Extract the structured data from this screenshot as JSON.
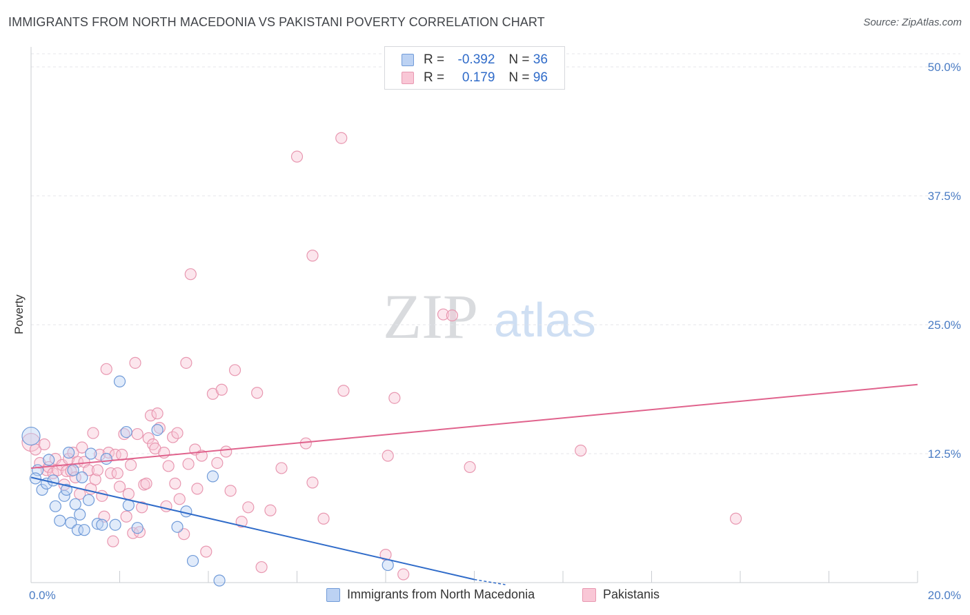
{
  "title": "IMMIGRANTS FROM NORTH MACEDONIA VS PAKISTANI POVERTY CORRELATION CHART",
  "source": "Source: ZipAtlas.com",
  "watermark": {
    "zip": "ZIP",
    "atlas": "atlas"
  },
  "legend": {
    "rows": [
      {
        "r_label": "R =",
        "r_value": "-0.392",
        "n_label": "N =",
        "n_value": "36"
      },
      {
        "r_label": "R =",
        "r_value": "0.179",
        "n_label": "N =",
        "n_value": "96"
      }
    ]
  },
  "colors": {
    "blue": "#6f9ad8",
    "blue_fill": "#bcd2f3",
    "blue_line": "#2f6bc9",
    "pink": "#e897b0",
    "pink_fill": "#f9c7d6",
    "pink_line": "#e0628c",
    "grid": "#e4e6ea"
  },
  "chart_data": {
    "type": "scatter",
    "title": "IMMIGRANTS FROM NORTH MACEDONIA VS PAKISTANI POVERTY CORRELATION CHART",
    "xlabel": "",
    "ylabel": "Poverty",
    "xlim": [
      0,
      20
    ],
    "ylim": [
      0,
      50
    ],
    "x_tick_labels": [
      "0.0%",
      "20.0%"
    ],
    "y_ticks": [
      12.5,
      25,
      37.5,
      50
    ],
    "y_tick_labels": [
      "12.5%",
      "25.0%",
      "37.5%",
      "50.0%"
    ],
    "grid": true,
    "legend_position": "bottom",
    "series": [
      {
        "name": "Immigrants from North Macedonia",
        "r": -0.392,
        "n": 36,
        "trend": {
          "x": [
            0,
            10.0
          ],
          "y": [
            10.2,
            0.3
          ],
          "dashed_to": [
            10.7,
            -0.2
          ]
        },
        "x": [
          0.0,
          0.15,
          0.25,
          0.35,
          0.4,
          0.5,
          0.55,
          0.65,
          0.75,
          0.8,
          0.85,
          0.9,
          0.95,
          1.0,
          1.05,
          1.1,
          1.15,
          1.2,
          1.3,
          1.35,
          1.5,
          1.6,
          1.7,
          1.9,
          2.0,
          2.15,
          2.2,
          2.4,
          2.85,
          3.3,
          3.5,
          3.65,
          4.1,
          4.25,
          8.05,
          0.1
        ],
        "y": [
          14.2,
          10.9,
          9.0,
          9.6,
          11.9,
          9.9,
          7.4,
          6.0,
          8.4,
          9.0,
          12.6,
          5.8,
          10.9,
          7.6,
          5.1,
          6.6,
          10.2,
          5.1,
          8.0,
          12.5,
          5.7,
          5.6,
          12.0,
          5.6,
          19.5,
          14.6,
          7.5,
          5.3,
          14.8,
          5.4,
          6.9,
          2.1,
          10.3,
          0.2,
          1.7,
          10.1
        ]
      },
      {
        "name": "Pakistanis",
        "r": 0.179,
        "n": 96,
        "trend": {
          "x": [
            0,
            20.0
          ],
          "y": [
            11.1,
            19.2
          ]
        },
        "x": [
          0.0,
          0.1,
          0.2,
          0.3,
          0.35,
          0.4,
          0.5,
          0.55,
          0.6,
          0.7,
          0.75,
          0.8,
          0.85,
          0.9,
          0.95,
          1.0,
          1.05,
          1.1,
          1.15,
          1.2,
          1.3,
          1.35,
          1.4,
          1.45,
          1.5,
          1.55,
          1.6,
          1.65,
          1.7,
          1.75,
          1.8,
          1.85,
          1.9,
          1.95,
          2.0,
          2.05,
          2.1,
          2.15,
          2.2,
          2.25,
          2.3,
          2.35,
          2.4,
          2.45,
          2.5,
          2.55,
          2.6,
          2.65,
          2.7,
          2.75,
          2.8,
          2.85,
          2.9,
          3.0,
          3.05,
          3.1,
          3.2,
          3.25,
          3.3,
          3.35,
          3.45,
          3.5,
          3.55,
          3.6,
          3.7,
          3.75,
          3.85,
          3.95,
          4.1,
          4.2,
          4.3,
          4.4,
          4.5,
          4.6,
          4.75,
          4.9,
          5.1,
          5.2,
          5.4,
          5.65,
          6.0,
          6.2,
          6.35,
          6.35,
          6.6,
          7.0,
          7.05,
          8.0,
          8.05,
          8.2,
          8.4,
          9.3,
          9.5,
          9.9,
          12.4,
          15.9
        ],
        "y": [
          13.6,
          12.9,
          11.6,
          13.4,
          10.9,
          11.2,
          10.6,
          12.0,
          10.9,
          11.4,
          9.5,
          10.8,
          12.0,
          10.8,
          12.6,
          10.2,
          11.7,
          8.6,
          13.1,
          11.7,
          10.9,
          9.1,
          14.5,
          10.0,
          10.9,
          12.4,
          8.4,
          6.4,
          20.7,
          12.6,
          10.6,
          4.0,
          12.4,
          10.6,
          9.3,
          12.4,
          14.4,
          6.4,
          8.6,
          11.4,
          4.8,
          21.3,
          14.4,
          4.9,
          7.3,
          9.5,
          9.6,
          14.0,
          16.2,
          13.4,
          13.0,
          16.4,
          15.0,
          12.6,
          7.4,
          11.3,
          14.1,
          9.6,
          14.5,
          8.1,
          4.7,
          21.3,
          11.5,
          29.9,
          12.9,
          9.1,
          12.3,
          3.0,
          18.3,
          11.6,
          18.7,
          12.7,
          8.9,
          20.6,
          5.9,
          7.3,
          18.4,
          1.5,
          7.0,
          11.1,
          41.3,
          13.5,
          9.7,
          31.7,
          6.2,
          43.1,
          18.6,
          2.7,
          12.3,
          17.9,
          0.8,
          26.0,
          25.9,
          11.2,
          12.8,
          6.2
        ]
      }
    ]
  },
  "bottom_legend": [
    "Immigrants from North Macedonia",
    "Pakistanis"
  ]
}
